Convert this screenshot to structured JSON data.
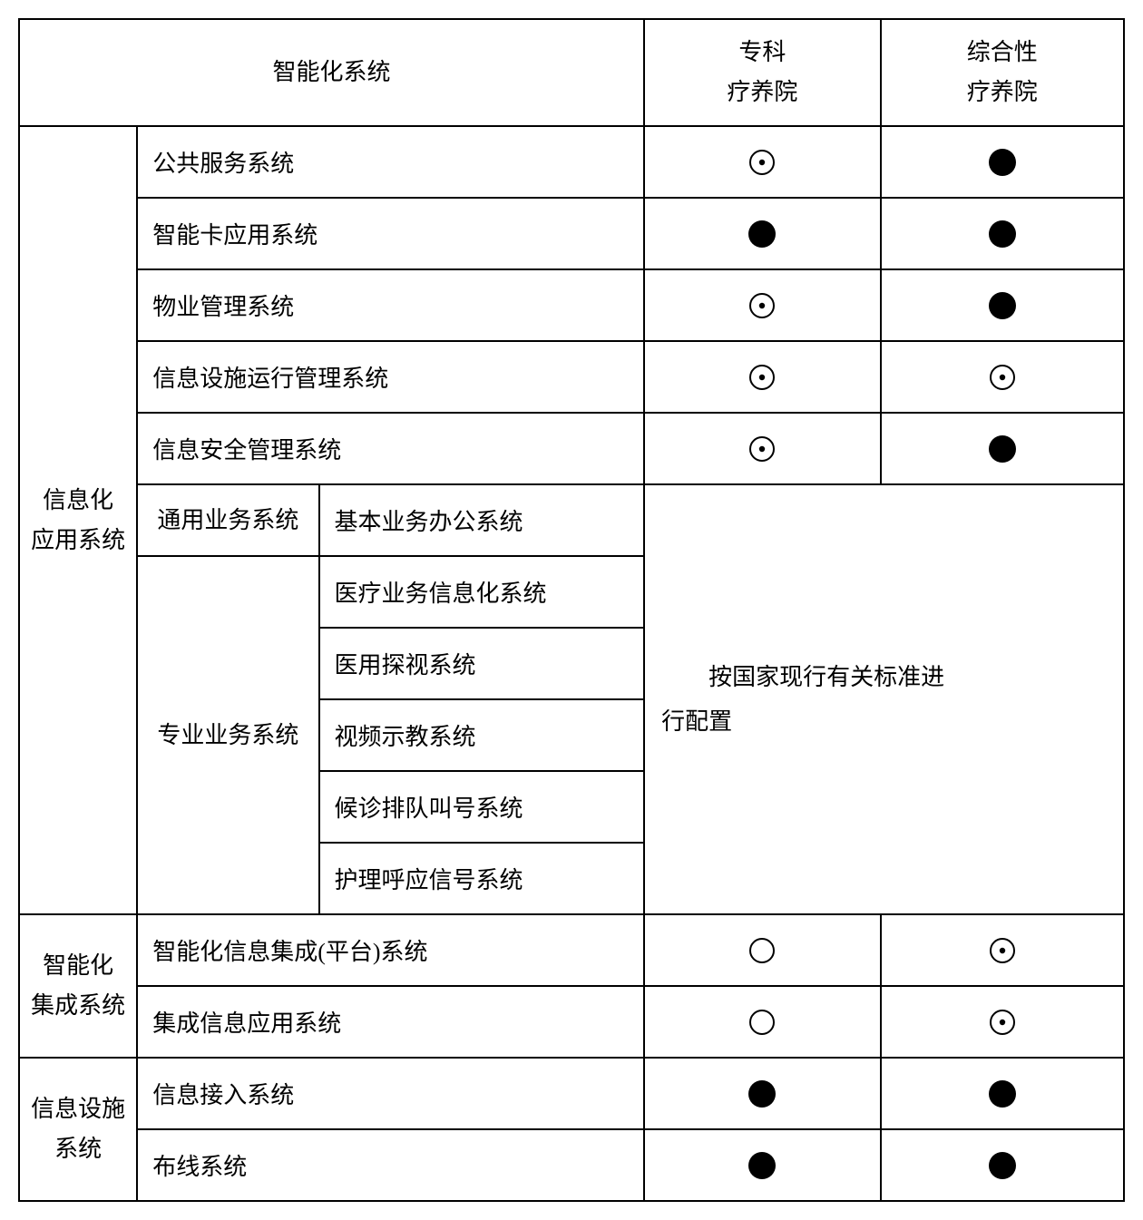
{
  "header": {
    "system_col": "智能化系统",
    "col_a_line1": "专科",
    "col_a_line2": "疗养院",
    "col_b_line1": "综合性",
    "col_b_line2": "疗养院"
  },
  "categories": {
    "info_app_line1": "信息化",
    "info_app_line2": "应用系统",
    "smart_int_line1": "智能化",
    "smart_int_line2": "集成系统",
    "info_fac_line1": "信息设施",
    "info_fac_line2": "系统"
  },
  "subcategories": {
    "general_biz": "通用业务系统",
    "prof_biz": "专业业务系统"
  },
  "rows": {
    "r1": "公共服务系统",
    "r2": "智能卡应用系统",
    "r3": "物业管理系统",
    "r4": "信息设施运行管理系统",
    "r5": "信息安全管理系统",
    "r6": "基本业务办公系统",
    "r7": "医疗业务信息化系统",
    "r8": "医用探视系统",
    "r9": "视频示教系统",
    "r10": "候诊排队叫号系统",
    "r11": "护理呼应信号系统",
    "r12": "智能化信息集成(平台)系统",
    "r13": "集成信息应用系统",
    "r14": "信息接入系统",
    "r15": "布线系统"
  },
  "note": {
    "line1": "按国家现行有关标准进",
    "line2": "行配置"
  },
  "symbols": {
    "r1a": "dotcircle",
    "r1b": "filled",
    "r2a": "filled",
    "r2b": "filled",
    "r3a": "dotcircle",
    "r3b": "filled",
    "r4a": "dotcircle",
    "r4b": "dotcircle",
    "r5a": "dotcircle",
    "r5b": "filled",
    "r12a": "circle",
    "r12b": "dotcircle",
    "r13a": "circle",
    "r13b": "dotcircle",
    "r14a": "filled",
    "r14b": "filled",
    "r15a": "filled",
    "r15b": "filled"
  },
  "style": {
    "filled_radius": 15,
    "circle_outer_radius": 13,
    "circle_stroke": 2,
    "dot_radius": 3.2,
    "svg_size": 36,
    "color": "#000000"
  }
}
